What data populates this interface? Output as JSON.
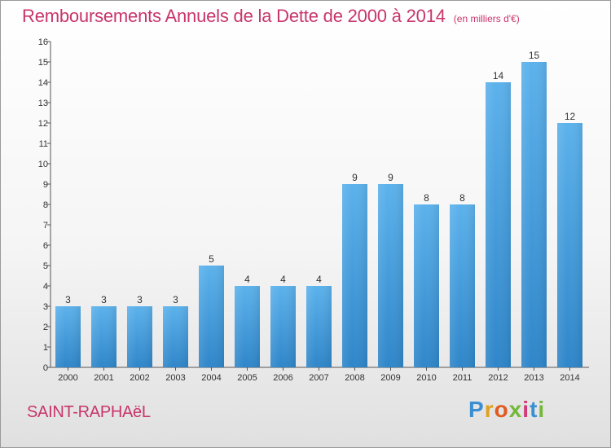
{
  "title": "Remboursements Annuels de la Dette de 2000 à 2014",
  "unit_note": "(en milliers d'€)",
  "commune": "SAINT-RAPHAëL",
  "logo": {
    "text": "Proxiti",
    "letter_colors": [
      "#3a8fd3",
      "#e0a020",
      "#e05b1f",
      "#74b73a",
      "#d03a7a",
      "#3a8fd3",
      "#74b73a"
    ]
  },
  "colors": {
    "bar": "#4ea6e3",
    "title": "#c8356a"
  },
  "chart_data": {
    "type": "bar",
    "categories": [
      "2000",
      "2001",
      "2002",
      "2003",
      "2004",
      "2005",
      "2006",
      "2007",
      "2008",
      "2009",
      "2010",
      "2011",
      "2012",
      "2013",
      "2014"
    ],
    "values": [
      3,
      3,
      3,
      3,
      5,
      4,
      4,
      4,
      9,
      9,
      8,
      8,
      14,
      15,
      12
    ],
    "data_labels": [
      "3",
      "3",
      "3",
      "3",
      "5",
      "4",
      "4",
      "4",
      "9",
      "9",
      "8",
      "8",
      "14",
      "15",
      "12"
    ],
    "ylim": [
      0,
      16
    ],
    "yticks": [
      "0",
      "1",
      "2",
      "3",
      "4",
      "5",
      "6",
      "7",
      "8",
      "9",
      "10",
      "11",
      "12",
      "13",
      "14",
      "15",
      "16"
    ],
    "grid": false,
    "legend": "none"
  }
}
